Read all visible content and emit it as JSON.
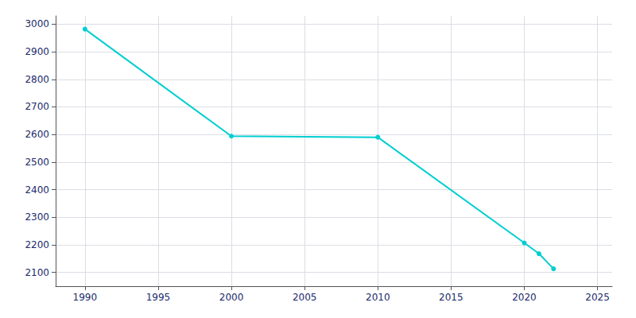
{
  "chart_data": {
    "type": "line",
    "x": [
      1990,
      2000,
      2010,
      2020,
      2021,
      2022
    ],
    "values": [
      2982,
      2594,
      2590,
      2207,
      2168,
      2113
    ],
    "color": "#00CED1",
    "marker": "circle",
    "xlim": [
      1988,
      2026
    ],
    "ylim": [
      2050,
      3030
    ],
    "xticks": [
      1990,
      1995,
      2000,
      2005,
      2010,
      2015,
      2020,
      2025
    ],
    "yticks": [
      2100,
      2200,
      2300,
      2400,
      2500,
      2600,
      2700,
      2800,
      2900,
      3000
    ],
    "grid": true
  }
}
